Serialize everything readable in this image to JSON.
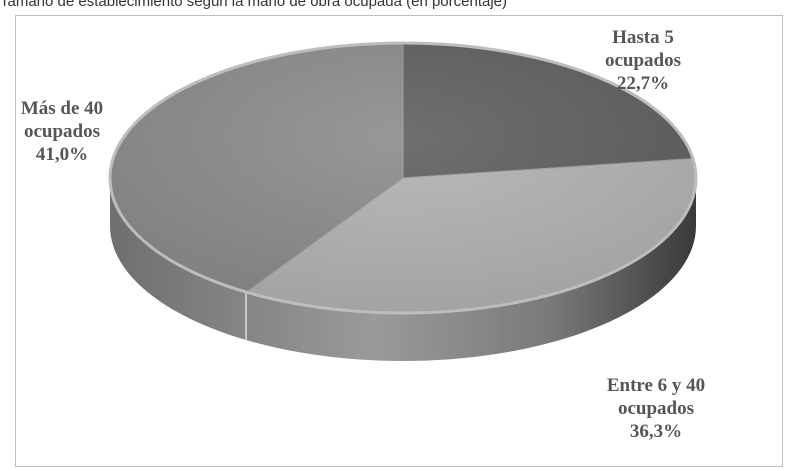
{
  "caption": "Tamaño de establecimiento según la mano de obra ocupada (en porcentaje)",
  "chart_data": {
    "type": "pie",
    "title": "",
    "labels": [
      "Hasta 5 ocupados",
      "Entre 6 y 40 ocupados",
      "Más de 40 ocupados"
    ],
    "values": [
      22.7,
      36.3,
      41.0
    ],
    "label_text": [
      [
        "Hasta 5",
        "ocupados",
        "22,7%"
      ],
      [
        "Entre 6 y 40",
        "ocupados",
        "36,3%"
      ],
      [
        "Más de 40",
        "ocupados",
        "41,0%"
      ]
    ],
    "colors": [
      "#5f5f5f",
      "#b3b3b3",
      "#8c8c8c"
    ],
    "legend": "none",
    "style": "3d"
  }
}
